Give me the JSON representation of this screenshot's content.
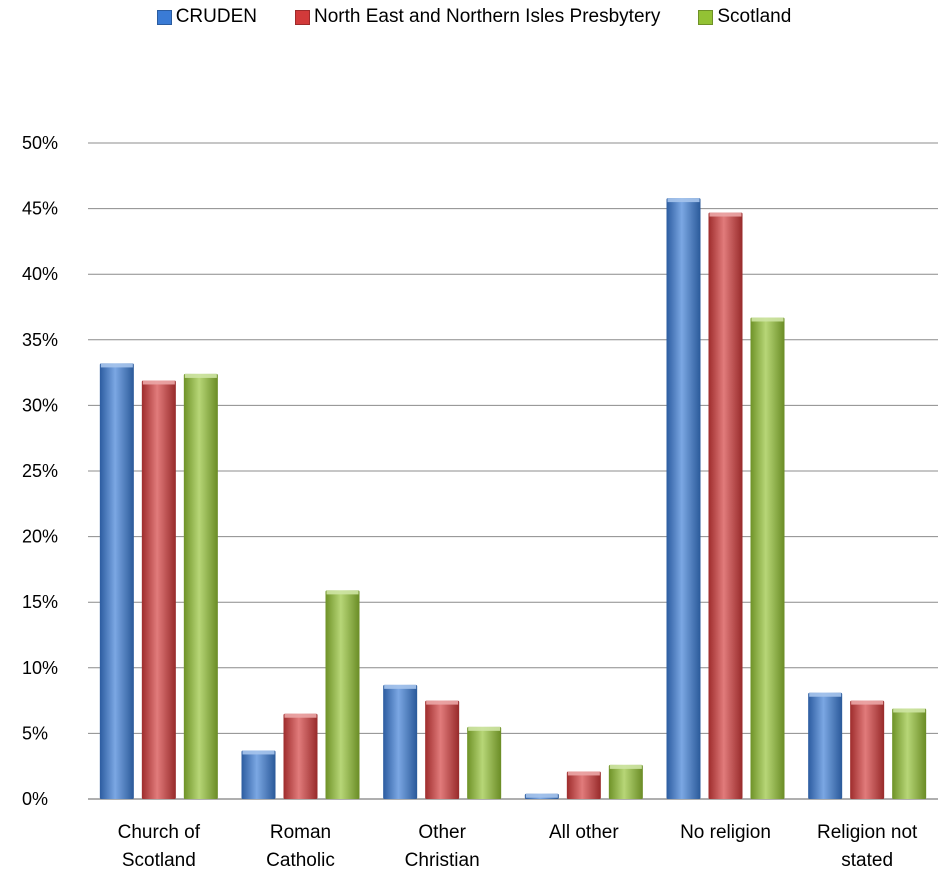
{
  "chart_data": {
    "type": "bar",
    "categories": [
      [
        "Church of",
        "Scotland"
      ],
      [
        "Roman",
        "Catholic"
      ],
      [
        "Other",
        "Christian"
      ],
      [
        "All other"
      ],
      [
        "No religion"
      ],
      [
        "Religion not",
        "stated"
      ]
    ],
    "series": [
      {
        "name": "CRUDEN",
        "color": "#3a7bd5",
        "values": [
          33.2,
          3.7,
          8.7,
          0.4,
          45.8,
          8.1
        ]
      },
      {
        "name": "North East and Northern Isles Presbytery",
        "color": "#d23a3a",
        "values": [
          31.9,
          6.5,
          7.5,
          2.1,
          44.7,
          7.5
        ]
      },
      {
        "name": "Scotland",
        "color": "#93c234",
        "values": [
          32.4,
          15.9,
          5.5,
          2.6,
          36.7,
          6.9
        ]
      }
    ],
    "y_ticks": [
      "0%",
      "5%",
      "10%",
      "15%",
      "20%",
      "25%",
      "30%",
      "35%",
      "40%",
      "45%",
      "50%"
    ],
    "ylim": [
      0,
      50
    ],
    "grid": true,
    "legend_position": "top-center"
  }
}
